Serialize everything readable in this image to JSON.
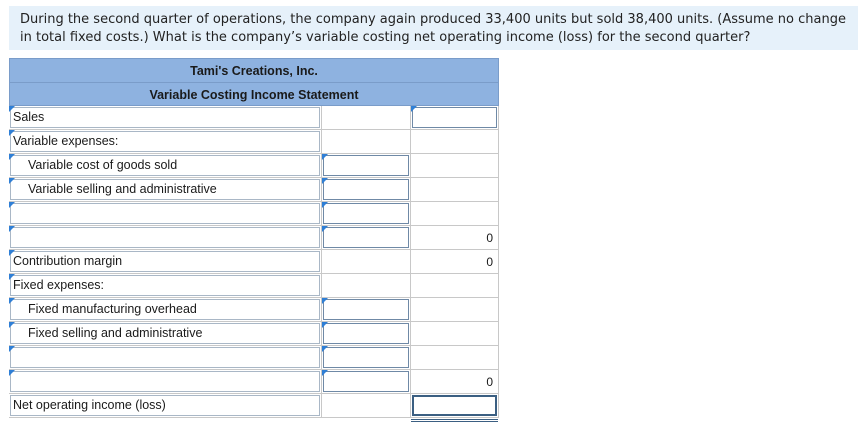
{
  "question": {
    "line1": "During the second quarter of operations, the company again produced 33,400 units but sold 38,400 units. (Assume no change",
    "line2": "in total fixed costs.) What is the company’s variable costing net operating income (loss) for the second quarter?"
  },
  "statement": {
    "company": "Tami's Creations, Inc.",
    "title": "Variable Costing Income Statement",
    "rows": [
      {
        "label": "Sales",
        "mid": "",
        "right": ""
      },
      {
        "label": "Variable expenses:",
        "mid": "",
        "right": ""
      },
      {
        "label": "Variable cost of goods sold",
        "mid": "",
        "right": ""
      },
      {
        "label": "Variable selling and administrative",
        "mid": "",
        "right": ""
      },
      {
        "label": "",
        "mid": "",
        "right": ""
      },
      {
        "label": "",
        "mid": "",
        "right": "0"
      },
      {
        "label": "Contribution margin",
        "mid": "",
        "right": "0"
      },
      {
        "label": "Fixed expenses:",
        "mid": "",
        "right": ""
      },
      {
        "label": "Fixed manufacturing overhead",
        "mid": "",
        "right": ""
      },
      {
        "label": "Fixed selling and administrative",
        "mid": "",
        "right": ""
      },
      {
        "label": "",
        "mid": "",
        "right": ""
      },
      {
        "label": "",
        "mid": "",
        "right": "0"
      },
      {
        "label": "Net operating income (loss)",
        "mid": "",
        "right": ""
      }
    ]
  },
  "colors": {
    "header_bg": "#8eb2e0",
    "question_bg": "#e6f1fa",
    "marker": "#2f7fd6"
  }
}
